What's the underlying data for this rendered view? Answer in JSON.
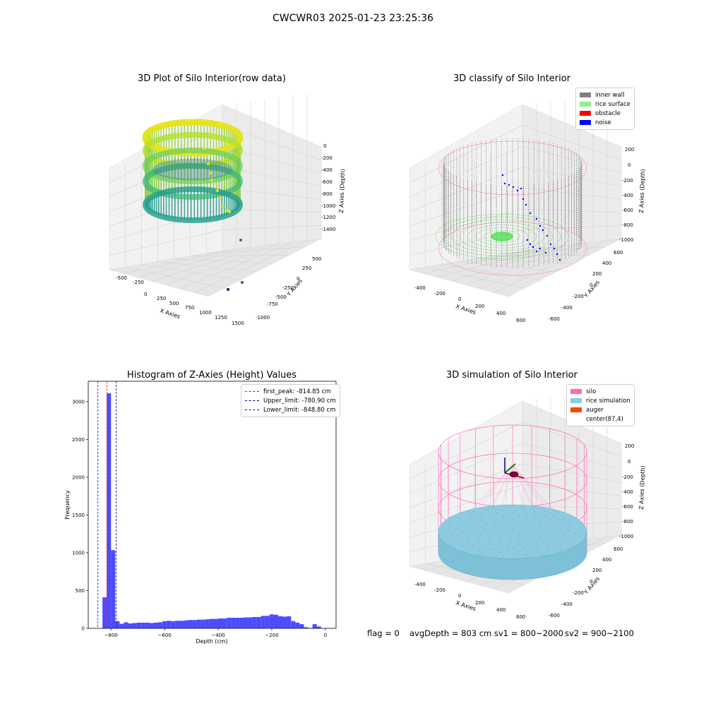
{
  "figure": {
    "suptitle": "CWCWR03 2025-01-23 23:25:36"
  },
  "chart_data": [
    {
      "type": "scatter3d",
      "title": "3D Plot of Silo Interior(row data)",
      "xlabel": "X Axies",
      "ylabel": "Y Axies",
      "zlabel": "Z Axies (Depth)",
      "x_ticks": [
        "-500",
        "-250",
        "0",
        "250",
        "500",
        "750",
        "1000",
        "1250",
        "1500"
      ],
      "y_ticks": [
        "-1000",
        "-750",
        "-500",
        "-250",
        "0",
        "250",
        "500"
      ],
      "z_ticks": [
        "0",
        "-200",
        "-400",
        "-600",
        "-800",
        "-1000",
        "-1200",
        "-1400"
      ],
      "colormap": "viridis",
      "shape": "cylinder of points, color graded by depth",
      "outliers": [
        {
          "x": 1100,
          "y": -200,
          "z": -1300
        },
        {
          "x": 1250,
          "y": -400,
          "z": -1450
        },
        {
          "x": 1000,
          "y": -900,
          "z": -1480
        }
      ]
    },
    {
      "type": "scatter3d",
      "title": "3D classify of Silo Interior",
      "xlabel": "X Axies",
      "ylabel": "Y Axies",
      "zlabel": "Z Axies (Depth)",
      "x_ticks": [
        "-400",
        "-200",
        "0",
        "200",
        "400",
        "600"
      ],
      "y_ticks": [
        "-600",
        "-400",
        "-200",
        "0",
        "200",
        "400",
        "600"
      ],
      "z_ticks": [
        "200",
        "0",
        "-200",
        "-400",
        "-600",
        "-800",
        "-1000"
      ],
      "legend": [
        {
          "label": "inner wall",
          "color": "#808080"
        },
        {
          "label": "rice surface",
          "color": "#90ee90"
        },
        {
          "label": "obstacle",
          "color": "#ff0000"
        },
        {
          "label": "noise",
          "color": "#0000ff"
        }
      ],
      "legend_position": "top-right"
    },
    {
      "type": "bar",
      "title": "Histogram of Z-Axies (Height) Values",
      "xlabel": "Depth (cm)",
      "ylabel": "Frequency",
      "bin_width": 16,
      "bins_start": [
        -832,
        -816,
        -800,
        -784,
        -768,
        -752,
        -736,
        -720,
        -704,
        -688,
        -672,
        -656,
        -640,
        -624,
        -608,
        -592,
        -576,
        -560,
        -544,
        -528,
        -512,
        -496,
        -480,
        -464,
        -448,
        -432,
        -416,
        -400,
        -384,
        -368,
        -352,
        -336,
        -320,
        -304,
        -288,
        -272,
        -256,
        -240,
        -224,
        -208,
        -192,
        -176,
        -160,
        -144,
        -128,
        -112,
        -96,
        -80,
        -64,
        -48,
        -32,
        -16
      ],
      "values": [
        410,
        3110,
        1035,
        95,
        60,
        80,
        65,
        70,
        75,
        75,
        75,
        70,
        75,
        80,
        95,
        100,
        95,
        100,
        100,
        105,
        110,
        110,
        115,
        115,
        120,
        125,
        125,
        130,
        130,
        140,
        140,
        140,
        140,
        145,
        145,
        150,
        150,
        165,
        165,
        185,
        180,
        160,
        155,
        160,
        95,
        75,
        55,
        15,
        5,
        55,
        25,
        0
      ],
      "xlim": [
        -885,
        40
      ],
      "ylim": [
        0,
        3270
      ],
      "x_ticks": [
        -800,
        -600,
        -400,
        -200,
        0
      ],
      "y_ticks": [
        0,
        500,
        1000,
        1500,
        2000,
        2500,
        3000
      ],
      "bar_color": "#0000ff",
      "vlines": [
        {
          "label": "first_peak: -814.85 cm",
          "x": -814.85,
          "color": "#ff0000"
        },
        {
          "label": "Upper_limit: -780.90 cm",
          "x": -780.9,
          "color": "#000080"
        },
        {
          "label": "Lower_limit: -848.80 cm",
          "x": -848.8,
          "color": "#0000ff"
        }
      ],
      "legend_position": "top-right"
    },
    {
      "type": "scatter3d",
      "title": "3D simulation of Silo Interior",
      "xlabel": "X Axies",
      "ylabel": "Y Axies",
      "zlabel": "Z Axies (Depth)",
      "x_ticks": [
        "-400",
        "-200",
        "0",
        "200",
        "400",
        "600"
      ],
      "y_ticks": [
        "-600",
        "-400",
        "-200",
        "0",
        "200",
        "400",
        "600"
      ],
      "z_ticks": [
        "200",
        "0",
        "-200",
        "-400",
        "-600",
        "-800",
        "-1000"
      ],
      "legend": [
        {
          "label": "silo",
          "color": "#ff69b4"
        },
        {
          "label": "rice simulation",
          "color": "#87ceeb"
        },
        {
          "label": "auger",
          "color": "#ff4500"
        },
        {
          "label": "center(87,4)",
          "color": "#ffffff"
        }
      ],
      "legend_position": "top-right"
    }
  ],
  "status": {
    "flag": "flag = 0",
    "avg_depth": "avgDepth = 803 cm",
    "sv1": "sv1 = 800~2000",
    "sv2": "sv2 = 900~2100"
  }
}
